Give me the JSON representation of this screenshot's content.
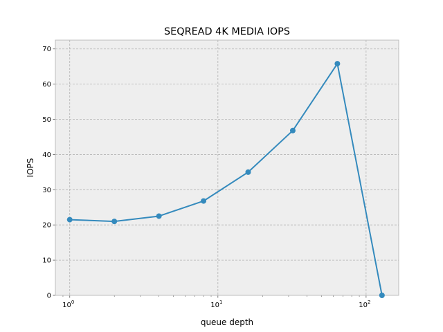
{
  "chart_data": {
    "type": "line",
    "title": "SEQREAD 4K MEDIA IOPS",
    "xlabel": "queue depth",
    "ylabel": "IOPS",
    "xscale": "log",
    "xlim": [
      0.8,
      166
    ],
    "ylim": [
      0,
      72.5
    ],
    "grid": true,
    "x": [
      1,
      2,
      4,
      8,
      16,
      32,
      64,
      128
    ],
    "series": [
      {
        "values": [
          21.5,
          21.0,
          22.5,
          26.8,
          35.0,
          46.8,
          65.8,
          0.0
        ]
      }
    ],
    "yticks": [
      0,
      10,
      20,
      30,
      40,
      50,
      60,
      70
    ],
    "ytick_labels": [
      "0",
      "10",
      "20",
      "30",
      "40",
      "50",
      "60",
      "70"
    ],
    "xticks": [
      1,
      10,
      100
    ],
    "xtick_labels": [
      "10",
      "10",
      "10"
    ],
    "xtick_exponents": [
      "0",
      "1",
      "2"
    ],
    "colors": {
      "line": "#348abd",
      "plot_background": "#eeeeee",
      "grid": "#b2b2b2",
      "spine": "#bcbcbc"
    }
  }
}
